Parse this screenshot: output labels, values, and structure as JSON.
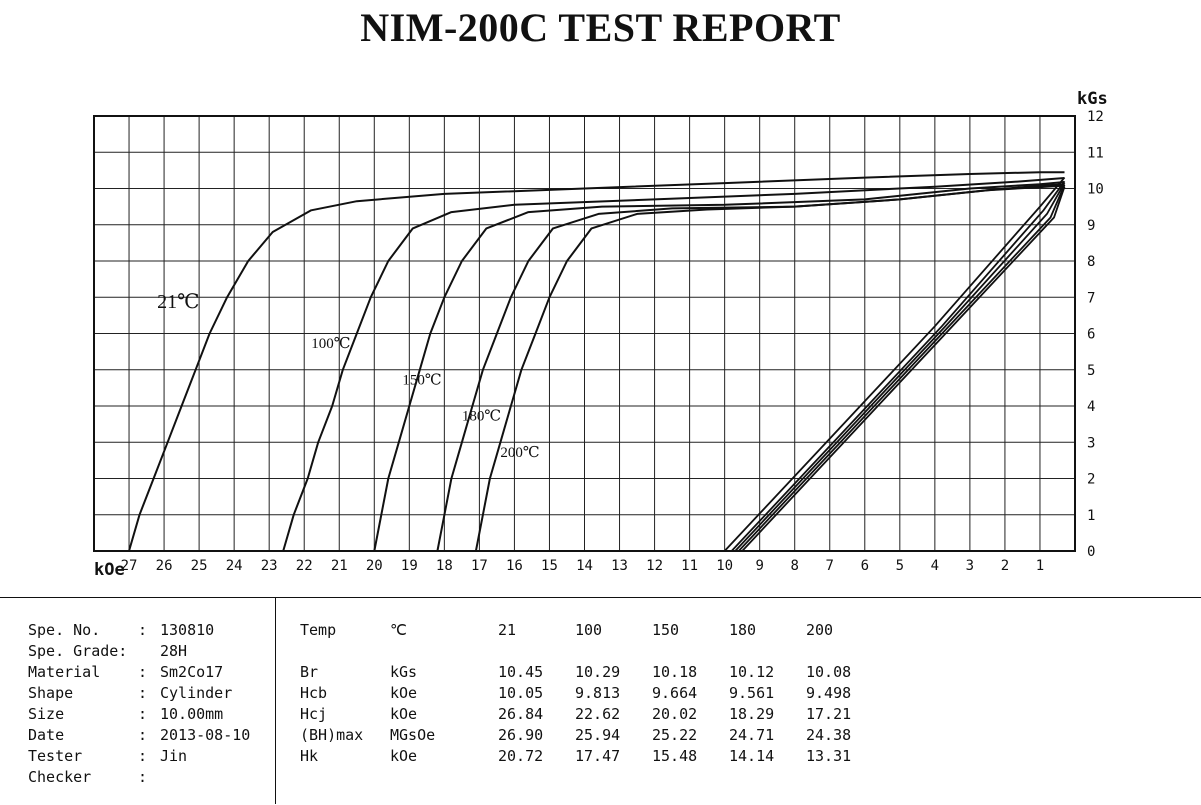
{
  "report_title": "NIM-200C TEST REPORT",
  "chart_data": {
    "type": "line",
    "title": "",
    "xlabel": "kOe",
    "ylabel": "kGs",
    "xlim": [
      28,
      0
    ],
    "ylim": [
      0,
      12
    ],
    "x_ticks": [
      27,
      26,
      25,
      24,
      23,
      22,
      21,
      20,
      19,
      18,
      17,
      16,
      15,
      14,
      13,
      12,
      11,
      10,
      9,
      8,
      7,
      6,
      5,
      4,
      3,
      2,
      1
    ],
    "y_ticks": [
      0,
      1,
      2,
      3,
      4,
      5,
      6,
      7,
      8,
      9,
      10,
      11,
      12
    ],
    "grid": true,
    "series": [
      {
        "name": "21℃",
        "label_at": [
          26.2,
          6.7
        ],
        "demag": [
          [
            27.0,
            0
          ],
          [
            26.7,
            1
          ],
          [
            26.3,
            2
          ],
          [
            25.9,
            3
          ],
          [
            25.5,
            4
          ],
          [
            25.1,
            5
          ],
          [
            24.7,
            6
          ],
          [
            24.2,
            7
          ],
          [
            23.6,
            8
          ],
          [
            22.9,
            8.8
          ],
          [
            21.8,
            9.4
          ],
          [
            20.5,
            9.65
          ],
          [
            18,
            9.85
          ],
          [
            14,
            10.0
          ],
          [
            10,
            10.15
          ],
          [
            6,
            10.3
          ],
          [
            3,
            10.4
          ],
          [
            1,
            10.45
          ],
          [
            0.3,
            10.45
          ]
        ],
        "recoil": [
          [
            10.0,
            0
          ],
          [
            7.0,
            3.1
          ],
          [
            4.0,
            6.2
          ],
          [
            1.0,
            9.5
          ],
          [
            0.3,
            10.3
          ]
        ]
      },
      {
        "name": "100℃",
        "label_at": [
          21.8,
          5.6
        ],
        "demag": [
          [
            22.6,
            0
          ],
          [
            22.3,
            1
          ],
          [
            21.9,
            2
          ],
          [
            21.6,
            3
          ],
          [
            21.2,
            4
          ],
          [
            20.9,
            5
          ],
          [
            20.5,
            6
          ],
          [
            20.1,
            7
          ],
          [
            19.6,
            8
          ],
          [
            18.9,
            8.9
          ],
          [
            17.8,
            9.35
          ],
          [
            16,
            9.55
          ],
          [
            12,
            9.7
          ],
          [
            8,
            9.85
          ],
          [
            4,
            10.05
          ],
          [
            1.5,
            10.2
          ],
          [
            0.3,
            10.29
          ]
        ],
        "recoil": [
          [
            9.8,
            0
          ],
          [
            6.8,
            3.1
          ],
          [
            3.8,
            6.2
          ],
          [
            0.9,
            9.4
          ],
          [
            0.3,
            10.2
          ]
        ]
      },
      {
        "name": "150℃",
        "label_at": [
          19.2,
          4.6
        ],
        "demag": [
          [
            20.0,
            0
          ],
          [
            19.8,
            1
          ],
          [
            19.6,
            2
          ],
          [
            19.3,
            3
          ],
          [
            19.0,
            4
          ],
          [
            18.7,
            5
          ],
          [
            18.4,
            6
          ],
          [
            18.0,
            7
          ],
          [
            17.5,
            8
          ],
          [
            16.8,
            8.9
          ],
          [
            15.6,
            9.35
          ],
          [
            13.5,
            9.5
          ],
          [
            10,
            9.55
          ],
          [
            6,
            9.7
          ],
          [
            3,
            10.0
          ],
          [
            1,
            10.12
          ],
          [
            0.3,
            10.18
          ]
        ],
        "recoil": [
          [
            9.7,
            0
          ],
          [
            6.7,
            3.1
          ],
          [
            3.7,
            6.2
          ],
          [
            0.8,
            9.3
          ],
          [
            0.3,
            10.15
          ]
        ]
      },
      {
        "name": "180℃",
        "label_at": [
          17.5,
          3.6
        ],
        "demag": [
          [
            18.2,
            0
          ],
          [
            18.0,
            1
          ],
          [
            17.8,
            2
          ],
          [
            17.5,
            3
          ],
          [
            17.2,
            4
          ],
          [
            16.9,
            5
          ],
          [
            16.5,
            6
          ],
          [
            16.1,
            7
          ],
          [
            15.6,
            8
          ],
          [
            14.9,
            8.9
          ],
          [
            13.6,
            9.3
          ],
          [
            11.5,
            9.45
          ],
          [
            8,
            9.5
          ],
          [
            5,
            9.7
          ],
          [
            2.5,
            9.95
          ],
          [
            1,
            10.08
          ],
          [
            0.3,
            10.12
          ]
        ],
        "recoil": [
          [
            9.6,
            0
          ],
          [
            6.6,
            3.1
          ],
          [
            3.6,
            6.2
          ],
          [
            0.7,
            9.2
          ],
          [
            0.3,
            10.1
          ]
        ]
      },
      {
        "name": "200℃",
        "label_at": [
          16.4,
          2.6
        ],
        "demag": [
          [
            17.1,
            0
          ],
          [
            16.9,
            1
          ],
          [
            16.7,
            2
          ],
          [
            16.4,
            3
          ],
          [
            16.1,
            4
          ],
          [
            15.8,
            5
          ],
          [
            15.4,
            6
          ],
          [
            15.0,
            7
          ],
          [
            14.5,
            8
          ],
          [
            13.8,
            8.9
          ],
          [
            12.5,
            9.3
          ],
          [
            10.5,
            9.42
          ],
          [
            8,
            9.5
          ],
          [
            5,
            9.7
          ],
          [
            2.5,
            9.95
          ],
          [
            1,
            10.04
          ],
          [
            0.3,
            10.08
          ]
        ],
        "recoil": [
          [
            9.5,
            0
          ],
          [
            6.5,
            3.1
          ],
          [
            3.5,
            6.2
          ],
          [
            0.6,
            9.2
          ],
          [
            0.3,
            10.05
          ]
        ]
      }
    ]
  },
  "specimen": {
    "rows": [
      {
        "key": "Spe. No.",
        "sep": ":",
        "value": "130810"
      },
      {
        "key": "Spe. Grade:",
        "sep": "",
        "value": "28H"
      },
      {
        "key": "Material",
        "sep": ":",
        "value": "Sm2Co17"
      },
      {
        "key": "Shape",
        "sep": ":",
        "value": "Cylinder"
      },
      {
        "key": "Size",
        "sep": ":",
        "value": "10.00mm"
      },
      {
        "key": "Date",
        "sep": ":",
        "value": "2013-08-10"
      },
      {
        "key": "Tester",
        "sep": ":",
        "value": "Jin"
      },
      {
        "key": "Checker",
        "sep": ":",
        "value": ""
      }
    ]
  },
  "results": {
    "header": {
      "param": "Temp",
      "unit": "℃",
      "values": [
        "21",
        "100",
        "150",
        "180",
        "200"
      ]
    },
    "rows": [
      {
        "param": "Br",
        "unit": "kGs",
        "values": [
          "10.45",
          "10.29",
          "10.18",
          "10.12",
          "10.08"
        ]
      },
      {
        "param": "Hcb",
        "unit": "kOe",
        "values": [
          "10.05",
          "9.813",
          "9.664",
          "9.561",
          "9.498"
        ]
      },
      {
        "param": "Hcj",
        "unit": "kOe",
        "values": [
          "26.84",
          "22.62",
          "20.02",
          "18.29",
          "17.21"
        ]
      },
      {
        "param": "(BH)max",
        "unit": "MGsOe",
        "values": [
          "26.90",
          "25.94",
          "25.22",
          "24.71",
          "24.38"
        ]
      },
      {
        "param": "Hk",
        "unit": "kOe",
        "values": [
          "20.72",
          "17.47",
          "15.48",
          "14.14",
          "13.31"
        ]
      }
    ]
  }
}
